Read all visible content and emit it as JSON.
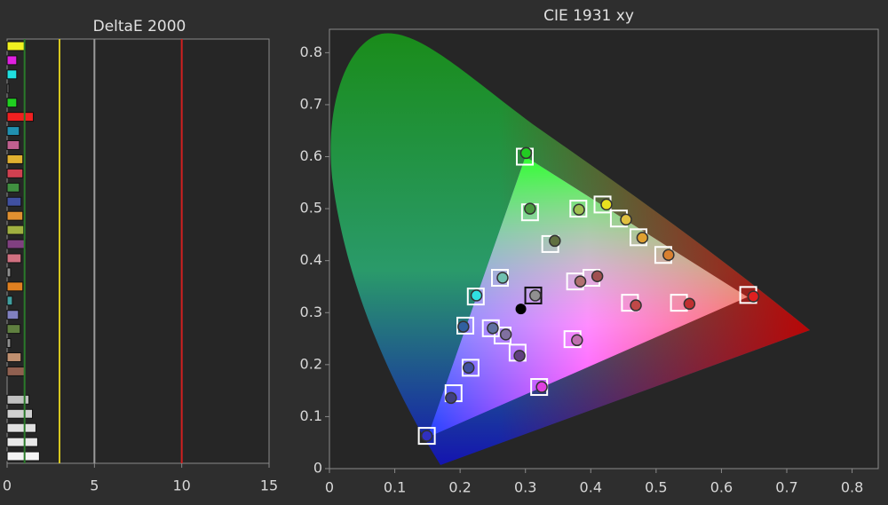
{
  "chart_data": [
    {
      "type": "bar",
      "orientation": "horizontal",
      "title": "DeltaE 2000",
      "categories": [
        null,
        null,
        null,
        null,
        null,
        null,
        null,
        null,
        null,
        null,
        null,
        null,
        null,
        null,
        null,
        null,
        null,
        null,
        null,
        null,
        null,
        null,
        null,
        null,
        null,
        null,
        null,
        null,
        null,
        null
      ],
      "values": [
        1.05,
        0.55,
        0.55,
        0.1,
        0.55,
        1.5,
        0.7,
        0.7,
        0.9,
        0.9,
        0.7,
        0.8,
        0.9,
        0.95,
        1.05,
        0.8,
        0.2,
        0.9,
        0.3,
        0.65,
        0.75,
        0.2,
        0.8,
        1.0,
        0,
        1.25,
        1.45,
        1.65,
        1.75,
        1.85
      ],
      "colors": [
        "#f0f020",
        "#e020e0",
        "#20e0e0",
        "#808080",
        "#20d020",
        "#f02020",
        "#2090b0",
        "#c06090",
        "#e0b030",
        "#d04050",
        "#409040",
        "#4050a0",
        "#e09030",
        "#a0b040",
        "#804080",
        "#d07080",
        "#909090",
        "#e08020",
        "#40a0a0",
        "#8080c0",
        "#608040",
        "#909090",
        "#c09070",
        "#906050",
        "#808080",
        "#c0c0c0",
        "#d0d0d0",
        "#e0e0e0",
        "#e8e8e8",
        "#f4f4f4"
      ],
      "xlim": [
        0,
        15
      ],
      "xticks": [
        0,
        5,
        10,
        15
      ],
      "reference_lines": [
        {
          "value": 1,
          "color": "#2a7a2a"
        },
        {
          "value": 3,
          "color": "#d8c820"
        },
        {
          "value": 5,
          "color": "#9a9a9a"
        },
        {
          "value": 10,
          "color": "#d02020"
        }
      ]
    },
    {
      "type": "scatter",
      "title": "CIE 1931 xy",
      "xlim": [
        0,
        0.84
      ],
      "ylim": [
        0,
        0.845
      ],
      "xticks": [
        0,
        0.1,
        0.2,
        0.3,
        0.4,
        0.5,
        0.6,
        0.7,
        0.8
      ],
      "yticks": [
        0,
        0.1,
        0.2,
        0.3,
        0.4,
        0.5,
        0.6,
        0.7,
        0.8
      ],
      "gamut": {
        "x": [
          0.64,
          0.3,
          0.15
        ],
        "y": [
          0.33,
          0.6,
          0.06
        ]
      },
      "series": [
        {
          "marker": "square",
          "x": [
            0.299,
            0.307,
            0.381,
            0.418,
            0.443,
            0.473,
            0.511,
            0.641,
            0.535,
            0.46,
            0.401,
            0.376,
            0.338,
            0.312,
            0.261,
            0.224,
            0.208,
            0.247,
            0.265,
            0.288,
            0.372,
            0.321,
            0.216,
            0.19,
            0.149
          ],
          "y": [
            0.6,
            0.493,
            0.5,
            0.508,
            0.481,
            0.445,
            0.411,
            0.334,
            0.319,
            0.319,
            0.367,
            0.36,
            0.432,
            0.333,
            0.367,
            0.331,
            0.275,
            0.27,
            0.256,
            0.223,
            0.249,
            0.157,
            0.194,
            0.145,
            0.063
          ],
          "colors": [
            "#ffffff",
            "#ffffff",
            "#ffffff",
            "#ffffff",
            "#ffffff",
            "#ffffff",
            "#ffffff",
            "#ffffff",
            "#ffffff",
            "#ffffff",
            "#ffffff",
            "#ffffff",
            "#ffffff",
            "#111111",
            "#ffffff",
            "#ffffff",
            "#ffffff",
            "#ffffff",
            "#ffffff",
            "#ffffff",
            "#ffffff",
            "#ffffff",
            "#ffffff",
            "#ffffff",
            "#ffffff"
          ]
        },
        {
          "marker": "circle",
          "x": [
            0.301,
            0.307,
            0.382,
            0.424,
            0.454,
            0.479,
            0.519,
            0.649,
            0.551,
            0.469,
            0.41,
            0.384,
            0.345,
            0.315,
            0.265,
            0.225,
            0.205,
            0.25,
            0.27,
            0.291,
            0.379,
            0.325,
            0.213,
            0.186,
            0.149
          ],
          "y": [
            0.607,
            0.5,
            0.498,
            0.508,
            0.479,
            0.444,
            0.411,
            0.331,
            0.317,
            0.314,
            0.37,
            0.36,
            0.438,
            0.333,
            0.367,
            0.333,
            0.273,
            0.27,
            0.258,
            0.217,
            0.247,
            0.157,
            0.194,
            0.136,
            0.063
          ],
          "colors": [
            "#22cc22",
            "#4a9a40",
            "#9fbf50",
            "#e8e020",
            "#e0c040",
            "#e0a030",
            "#d88030",
            "#e02020",
            "#c03030",
            "#c04848",
            "#a05050",
            "#b07070",
            "#607040",
            "#909090",
            "#70c0b0",
            "#30e0e0",
            "#3060a0",
            "#6070a0",
            "#8070a0",
            "#604080",
            "#c070b0",
            "#e040e0",
            "#4050a0",
            "#404080",
            "#3030c0"
          ]
        },
        {
          "marker": "dot",
          "x": [
            0.293
          ],
          "y": [
            0.307
          ],
          "colors": [
            "#000000"
          ]
        }
      ]
    }
  ]
}
